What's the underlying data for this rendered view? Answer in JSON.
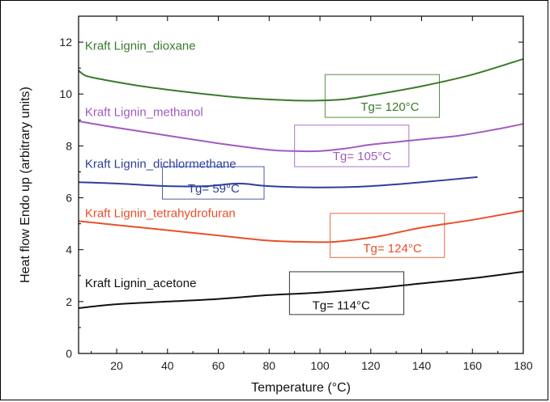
{
  "chart_data": {
    "type": "line",
    "title": "",
    "xlabel": "Temperature (°C)",
    "ylabel": "Heat flow Endo up (arbitrary units)",
    "xlim": [
      5,
      180
    ],
    "ylim": [
      0,
      13
    ],
    "xticks": [
      20,
      40,
      60,
      80,
      100,
      120,
      140,
      160,
      180
    ],
    "yticks": [
      0,
      2,
      4,
      6,
      8,
      10,
      12
    ],
    "grid": false,
    "series": [
      {
        "name": "Kraft Lignin_dioxane",
        "color": "#3a7a2a",
        "x": [
          5,
          8,
          15,
          30,
          50,
          70,
          90,
          100,
          110,
          120,
          140,
          160,
          180
        ],
        "y": [
          10.9,
          10.7,
          10.55,
          10.3,
          10.05,
          9.85,
          9.75,
          9.75,
          9.8,
          9.95,
          10.3,
          10.75,
          11.35
        ],
        "annotation": "Tg= 120°C"
      },
      {
        "name": "Kraft Lignin_methanol",
        "color": "#a15bbf",
        "x": [
          5,
          20,
          40,
          60,
          80,
          90,
          100,
          110,
          120,
          130,
          140,
          155,
          170,
          180
        ],
        "y": [
          8.95,
          8.7,
          8.4,
          8.1,
          7.85,
          7.8,
          7.8,
          7.9,
          8.05,
          8.15,
          8.25,
          8.4,
          8.65,
          8.85
        ],
        "annotation": "Tg= 105°C"
      },
      {
        "name": "Kraft Lignin_dichlormethane",
        "color": "#2f3f9a",
        "x": [
          5,
          20,
          40,
          55,
          68,
          80,
          100,
          120,
          140,
          162
        ],
        "y": [
          6.6,
          6.55,
          6.45,
          6.45,
          6.55,
          6.45,
          6.4,
          6.45,
          6.6,
          6.8
        ],
        "annotation": "Tg= 59°C"
      },
      {
        "name": "Kraft Lignin_tetrahydrofuran",
        "color": "#e8502a",
        "x": [
          5,
          20,
          40,
          60,
          80,
          95,
          105,
          115,
          125,
          140,
          160,
          180
        ],
        "y": [
          5.1,
          4.95,
          4.75,
          4.55,
          4.35,
          4.3,
          4.3,
          4.4,
          4.55,
          4.85,
          5.15,
          5.5
        ],
        "annotation": "Tg= 124°C"
      },
      {
        "name": "Kraft Lignin_acetone",
        "color": "#111111",
        "x": [
          5,
          20,
          40,
          60,
          80,
          100,
          120,
          140,
          160,
          180
        ],
        "y": [
          1.75,
          1.9,
          2.0,
          2.1,
          2.25,
          2.35,
          2.5,
          2.7,
          2.9,
          3.15
        ],
        "annotation": "Tg= 114°C"
      }
    ]
  }
}
